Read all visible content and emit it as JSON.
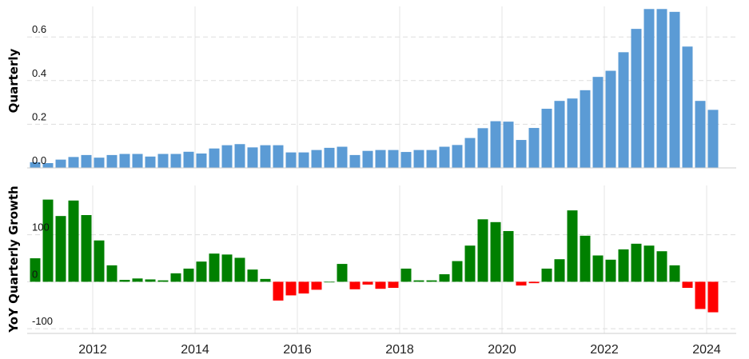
{
  "chart_data": [
    {
      "type": "bar",
      "ylabel": "Quarterly",
      "ylim": [
        0,
        0.74
      ],
      "yticks": [
        0.0,
        0.2,
        0.4,
        0.6
      ],
      "ytick_labels": [
        "0.0",
        "0.2",
        "0.4",
        "0.6"
      ],
      "grid": true,
      "x": [
        "2010-Q4",
        "2011-Q1",
        "2011-Q2",
        "2011-Q3",
        "2011-Q4",
        "2012-Q1",
        "2012-Q2",
        "2012-Q3",
        "2012-Q4",
        "2013-Q1",
        "2013-Q2",
        "2013-Q3",
        "2013-Q4",
        "2014-Q1",
        "2014-Q2",
        "2014-Q3",
        "2014-Q4",
        "2015-Q1",
        "2015-Q2",
        "2015-Q3",
        "2015-Q4",
        "2016-Q1",
        "2016-Q2",
        "2016-Q3",
        "2016-Q4",
        "2017-Q1",
        "2017-Q2",
        "2017-Q3",
        "2017-Q4",
        "2018-Q1",
        "2018-Q2",
        "2018-Q3",
        "2018-Q4",
        "2019-Q1",
        "2019-Q2",
        "2019-Q3",
        "2019-Q4",
        "2020-Q1",
        "2020-Q2",
        "2020-Q3",
        "2020-Q4",
        "2021-Q1",
        "2021-Q2",
        "2021-Q3",
        "2021-Q4",
        "2022-Q1",
        "2022-Q2",
        "2022-Q3",
        "2022-Q4",
        "2023-Q1",
        "2023-Q2",
        "2023-Q3",
        "2023-Q4",
        "2024-Q1"
      ],
      "values": [
        0.026,
        0.022,
        0.038,
        0.05,
        0.059,
        0.047,
        0.059,
        0.064,
        0.064,
        0.052,
        0.064,
        0.064,
        0.074,
        0.066,
        0.089,
        0.104,
        0.109,
        0.094,
        0.104,
        0.104,
        0.071,
        0.071,
        0.082,
        0.092,
        0.097,
        0.059,
        0.078,
        0.082,
        0.082,
        0.073,
        0.082,
        0.082,
        0.097,
        0.105,
        0.137,
        0.182,
        0.214,
        0.212,
        0.128,
        0.183,
        0.271,
        0.307,
        0.318,
        0.356,
        0.417,
        0.445,
        0.53,
        0.637,
        0.728,
        0.728,
        0.715,
        0.556,
        0.307,
        0.266
      ],
      "color": "#5b9bd5"
    },
    {
      "type": "bar",
      "ylabel": "YoY Quarterly Growth",
      "ylim": [
        -110,
        205
      ],
      "yticks": [
        -100,
        0,
        100
      ],
      "ytick_labels": [
        "-100",
        "0",
        "100"
      ],
      "grid": true,
      "x": [
        "2010-Q4",
        "2011-Q1",
        "2011-Q2",
        "2011-Q3",
        "2011-Q4",
        "2012-Q1",
        "2012-Q2",
        "2012-Q3",
        "2012-Q4",
        "2013-Q1",
        "2013-Q2",
        "2013-Q3",
        "2013-Q4",
        "2014-Q1",
        "2014-Q2",
        "2014-Q3",
        "2014-Q4",
        "2015-Q1",
        "2015-Q2",
        "2015-Q3",
        "2015-Q4",
        "2016-Q1",
        "2016-Q2",
        "2016-Q3",
        "2016-Q4",
        "2017-Q1",
        "2017-Q2",
        "2017-Q3",
        "2017-Q4",
        "2018-Q1",
        "2018-Q2",
        "2018-Q3",
        "2018-Q4",
        "2019-Q1",
        "2019-Q2",
        "2019-Q3",
        "2019-Q4",
        "2020-Q1",
        "2020-Q2",
        "2020-Q3",
        "2020-Q4",
        "2021-Q1",
        "2021-Q2",
        "2021-Q3",
        "2021-Q4",
        "2022-Q1",
        "2022-Q2",
        "2022-Q3",
        "2022-Q4",
        "2023-Q1",
        "2023-Q2",
        "2023-Q3",
        "2023-Q4",
        "2024-Q1"
      ],
      "values": [
        50,
        175,
        140,
        173,
        142,
        88,
        35,
        4,
        7,
        5,
        3,
        18,
        28,
        43,
        60,
        58,
        51,
        26,
        6,
        -40,
        -29,
        -25,
        -17,
        0,
        38,
        -16,
        -6,
        -15,
        -13,
        28,
        3,
        3,
        16,
        44,
        77,
        133,
        127,
        108,
        -8,
        -3,
        28,
        48,
        152,
        98,
        56,
        47,
        69,
        81,
        77,
        65,
        35,
        -13,
        -58,
        -65
      ],
      "positive_color": "#008000",
      "negative_color": "#ff0000"
    }
  ],
  "x_axis": {
    "tick_labels": [
      "2012",
      "2014",
      "2016",
      "2018",
      "2020",
      "2022",
      "2024"
    ]
  }
}
